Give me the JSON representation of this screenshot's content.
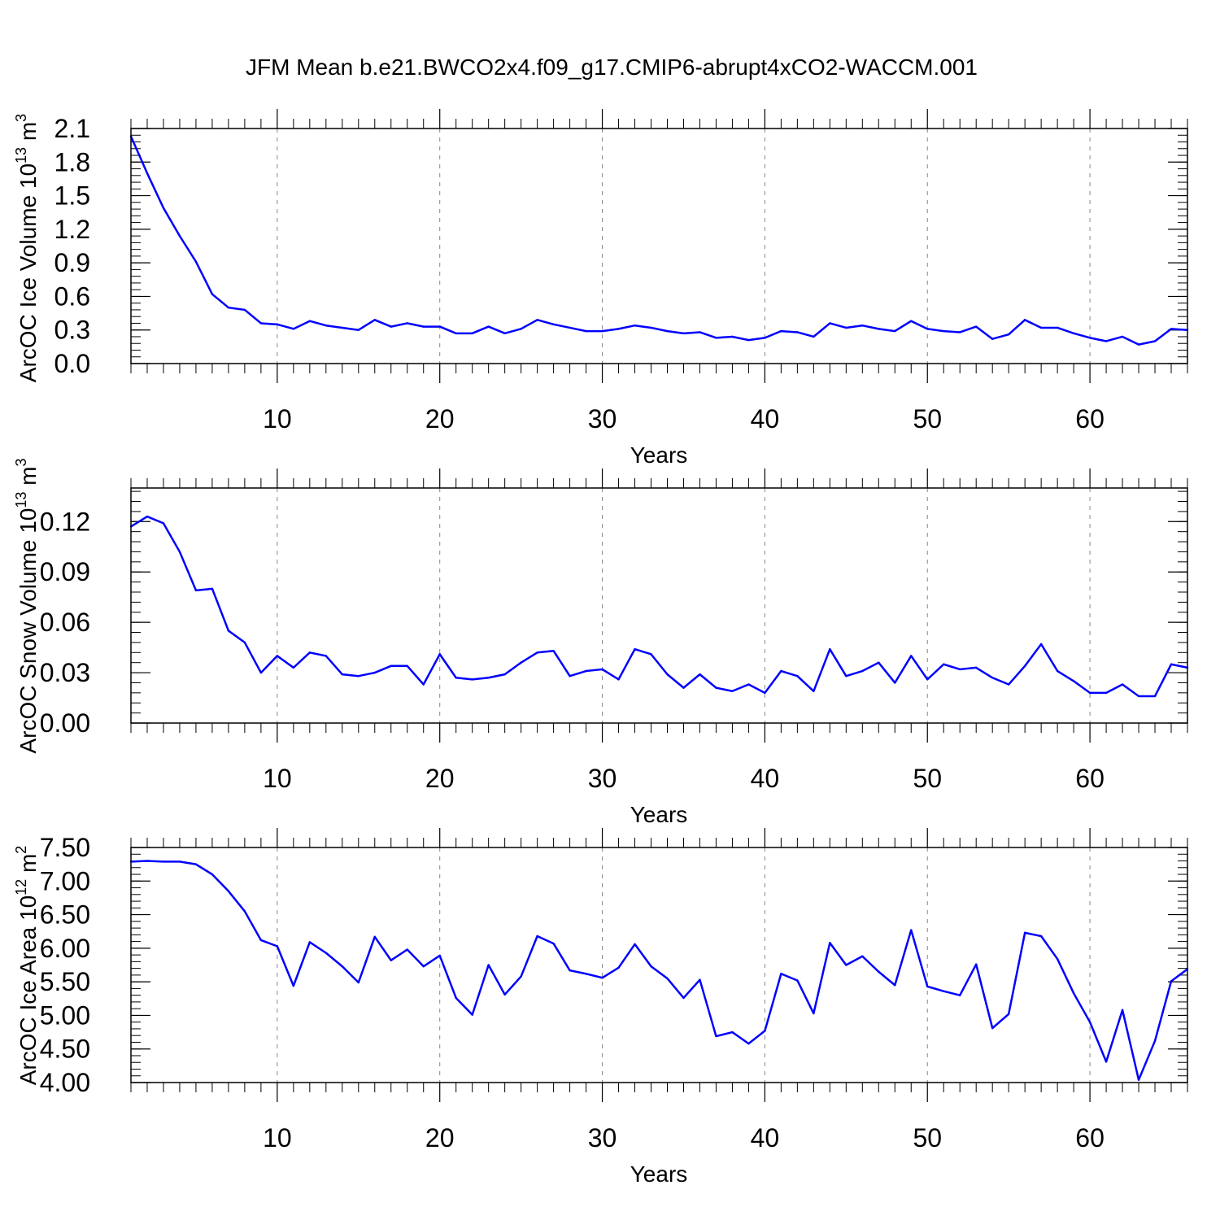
{
  "figure": {
    "title": "JFM Mean b.e21.BWCO2x4.f09_g17.CMIP6-abrupt4xCO2-WACCM.001"
  },
  "chart_data": [
    {
      "type": "line",
      "title": "",
      "xlabel": "Years",
      "ylabel": "ArcOC Ice Volume 10",
      "ylabel_exponent": "13",
      "ylabel_unit": " m",
      "ylabel_unit_power": "3",
      "xlim": [
        1,
        66
      ],
      "ylim": [
        0,
        2.1
      ],
      "xticks": [
        10,
        20,
        30,
        40,
        50,
        60
      ],
      "yticks": [
        0.0,
        0.3,
        0.6,
        0.9,
        1.2,
        1.5,
        1.8,
        2.1
      ],
      "ytick_labels": [
        "0.0",
        "0.3",
        "0.6",
        "0.9",
        "1.2",
        "1.5",
        "1.8",
        "2.1"
      ],
      "ytick_minor": 0.06,
      "grid": "vertical dashed at major x ticks",
      "line_color": "#0000ff",
      "series": [
        {
          "name": "ArcOC Ice Volume",
          "x": [
            1,
            2,
            3,
            4,
            5,
            6,
            7,
            8,
            9,
            10,
            11,
            12,
            13,
            14,
            15,
            16,
            17,
            18,
            19,
            20,
            21,
            22,
            23,
            24,
            25,
            26,
            27,
            28,
            29,
            30,
            31,
            32,
            33,
            34,
            35,
            36,
            37,
            38,
            39,
            40,
            41,
            42,
            43,
            44,
            45,
            46,
            47,
            48,
            49,
            50,
            51,
            52,
            53,
            54,
            55,
            56,
            57,
            58,
            59,
            60,
            61,
            62,
            63,
            64,
            65,
            66
          ],
          "values": [
            2.03,
            1.7,
            1.39,
            1.14,
            0.91,
            0.62,
            0.5,
            0.48,
            0.36,
            0.35,
            0.31,
            0.38,
            0.34,
            0.32,
            0.3,
            0.39,
            0.33,
            0.36,
            0.33,
            0.33,
            0.27,
            0.27,
            0.33,
            0.27,
            0.31,
            0.39,
            0.35,
            0.32,
            0.29,
            0.29,
            0.31,
            0.34,
            0.32,
            0.29,
            0.27,
            0.28,
            0.23,
            0.24,
            0.21,
            0.23,
            0.29,
            0.28,
            0.24,
            0.36,
            0.32,
            0.34,
            0.31,
            0.29,
            0.38,
            0.31,
            0.29,
            0.28,
            0.33,
            0.22,
            0.26,
            0.39,
            0.32,
            0.32,
            0.27,
            0.23,
            0.2,
            0.24,
            0.17,
            0.2,
            0.31,
            0.3
          ]
        }
      ]
    },
    {
      "type": "line",
      "title": "",
      "xlabel": "Years",
      "ylabel": "ArcOC Snow Volume 10",
      "ylabel_exponent": "13",
      "ylabel_unit": " m",
      "ylabel_unit_power": "3",
      "xlim": [
        1,
        66
      ],
      "ylim": [
        0,
        0.14
      ],
      "xticks": [
        10,
        20,
        30,
        40,
        50,
        60
      ],
      "yticks": [
        0.0,
        0.03,
        0.06,
        0.09,
        0.12
      ],
      "ytick_labels": [
        "0.00",
        "0.03",
        "0.06",
        "0.09",
        "0.12"
      ],
      "ytick_minor": 0.006,
      "grid": "vertical dashed at major x ticks",
      "line_color": "#0000ff",
      "series": [
        {
          "name": "ArcOC Snow Volume",
          "x": [
            1,
            2,
            3,
            4,
            5,
            6,
            7,
            8,
            9,
            10,
            11,
            12,
            13,
            14,
            15,
            16,
            17,
            18,
            19,
            20,
            21,
            22,
            23,
            24,
            25,
            26,
            27,
            28,
            29,
            30,
            31,
            32,
            33,
            34,
            35,
            36,
            37,
            38,
            39,
            40,
            41,
            42,
            43,
            44,
            45,
            46,
            47,
            48,
            49,
            50,
            51,
            52,
            53,
            54,
            55,
            56,
            57,
            58,
            59,
            60,
            61,
            62,
            63,
            64,
            65,
            66
          ],
          "values": [
            0.117,
            0.123,
            0.119,
            0.102,
            0.079,
            0.08,
            0.055,
            0.048,
            0.03,
            0.04,
            0.033,
            0.042,
            0.04,
            0.029,
            0.028,
            0.03,
            0.034,
            0.034,
            0.023,
            0.041,
            0.027,
            0.026,
            0.027,
            0.029,
            0.036,
            0.042,
            0.043,
            0.028,
            0.031,
            0.032,
            0.026,
            0.044,
            0.041,
            0.029,
            0.021,
            0.029,
            0.021,
            0.019,
            0.023,
            0.018,
            0.031,
            0.028,
            0.019,
            0.044,
            0.028,
            0.031,
            0.036,
            0.024,
            0.04,
            0.026,
            0.035,
            0.032,
            0.033,
            0.027,
            0.023,
            0.034,
            0.047,
            0.031,
            0.025,
            0.018,
            0.018,
            0.023,
            0.016,
            0.016,
            0.035,
            0.033
          ]
        }
      ]
    },
    {
      "type": "line",
      "title": "",
      "xlabel": "Years",
      "ylabel": "ArcOC Ice Area 10",
      "ylabel_exponent": "12",
      "ylabel_unit": " m",
      "ylabel_unit_power": "2",
      "xlim": [
        1,
        66
      ],
      "ylim": [
        4.0,
        7.5
      ],
      "xticks": [
        10,
        20,
        30,
        40,
        50,
        60
      ],
      "yticks": [
        4.0,
        4.5,
        5.0,
        5.5,
        6.0,
        6.5,
        7.0,
        7.5
      ],
      "ytick_labels": [
        "4.00",
        "4.50",
        "5.00",
        "5.50",
        "6.00",
        "6.50",
        "7.00",
        "7.50"
      ],
      "ytick_minor": 0.1,
      "grid": "vertical dashed at major x ticks",
      "line_color": "#0000ff",
      "series": [
        {
          "name": "ArcOC Ice Area",
          "x": [
            1,
            2,
            3,
            4,
            5,
            6,
            7,
            8,
            9,
            10,
            11,
            12,
            13,
            14,
            15,
            16,
            17,
            18,
            19,
            20,
            21,
            22,
            23,
            24,
            25,
            26,
            27,
            28,
            29,
            30,
            31,
            32,
            33,
            34,
            35,
            36,
            37,
            38,
            39,
            40,
            41,
            42,
            43,
            44,
            45,
            46,
            47,
            48,
            49,
            50,
            51,
            52,
            53,
            54,
            55,
            56,
            57,
            58,
            59,
            60,
            61,
            62,
            63,
            64,
            65,
            66
          ],
          "values": [
            7.29,
            7.3,
            7.29,
            7.29,
            7.25,
            7.1,
            6.85,
            6.55,
            6.12,
            6.03,
            5.44,
            6.09,
            5.93,
            5.73,
            5.49,
            6.17,
            5.82,
            5.98,
            5.73,
            5.89,
            5.26,
            5.01,
            5.75,
            5.31,
            5.58,
            6.18,
            6.07,
            5.67,
            5.62,
            5.56,
            5.71,
            6.06,
            5.73,
            5.55,
            5.26,
            5.53,
            4.69,
            4.75,
            4.58,
            4.77,
            5.62,
            5.52,
            5.03,
            6.08,
            5.75,
            5.88,
            5.65,
            5.45,
            6.27,
            5.43,
            5.36,
            5.3,
            5.76,
            4.81,
            5.02,
            6.23,
            6.18,
            5.84,
            5.33,
            4.9,
            4.31,
            5.08,
            4.04,
            4.62,
            5.51,
            5.69
          ]
        }
      ]
    }
  ]
}
